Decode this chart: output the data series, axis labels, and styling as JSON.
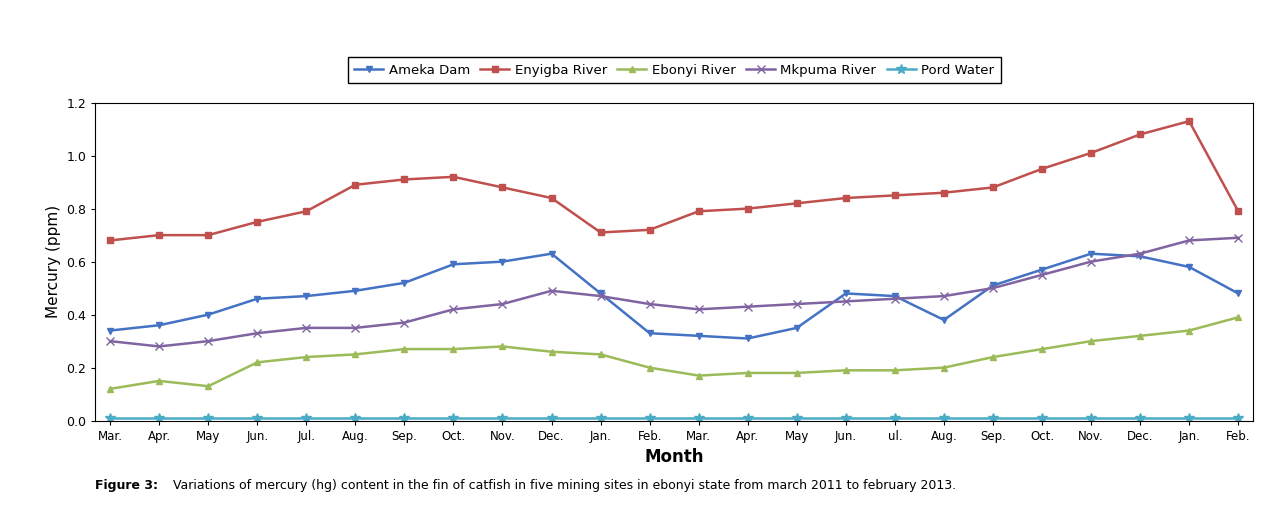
{
  "months": [
    "Mar.",
    "Apr.",
    "May",
    "Jun.",
    "Jul.",
    "Aug.",
    "Sep.",
    "Oct.",
    "Nov.",
    "Dec.",
    "Jan.",
    "Feb.",
    "Mar.",
    "Apr.",
    "May",
    "Jun.",
    "ul.",
    "Aug.",
    "Sep.",
    "Oct.",
    "Nov.",
    "Dec.",
    "Jan.",
    "Feb."
  ],
  "ameka_dam": [
    0.34,
    0.36,
    0.4,
    0.46,
    0.47,
    0.49,
    0.52,
    0.59,
    0.6,
    0.63,
    0.48,
    0.33,
    0.32,
    0.31,
    0.35,
    0.48,
    0.47,
    0.38,
    0.51,
    0.57,
    0.63,
    0.62,
    0.58,
    0.48
  ],
  "enyigba_river": [
    0.68,
    0.7,
    0.7,
    0.75,
    0.79,
    0.89,
    0.91,
    0.92,
    0.88,
    0.84,
    0.71,
    0.72,
    0.79,
    0.8,
    0.82,
    0.84,
    0.85,
    0.86,
    0.88,
    0.95,
    1.01,
    1.08,
    1.13,
    0.79
  ],
  "ebonyi_river": [
    0.12,
    0.15,
    0.13,
    0.22,
    0.24,
    0.25,
    0.27,
    0.27,
    0.28,
    0.26,
    0.25,
    0.2,
    0.17,
    0.18,
    0.18,
    0.19,
    0.19,
    0.2,
    0.24,
    0.27,
    0.3,
    0.32,
    0.34,
    0.39
  ],
  "mkpuma_river": [
    0.3,
    0.28,
    0.3,
    0.33,
    0.35,
    0.35,
    0.37,
    0.42,
    0.44,
    0.49,
    0.47,
    0.44,
    0.42,
    0.43,
    0.44,
    0.45,
    0.46,
    0.47,
    0.5,
    0.55,
    0.6,
    0.63,
    0.68,
    0.69
  ],
  "pond_water": [
    0.01,
    0.01,
    0.01,
    0.01,
    0.01,
    0.01,
    0.01,
    0.01,
    0.01,
    0.01,
    0.01,
    0.01,
    0.01,
    0.01,
    0.01,
    0.01,
    0.01,
    0.01,
    0.01,
    0.01,
    0.01,
    0.01,
    0.01,
    0.01
  ],
  "ylabel": "Mercury (ppm)",
  "xlabel": "Month",
  "ylim": [
    0,
    1.2
  ],
  "yticks": [
    0,
    0.2,
    0.4,
    0.6,
    0.8,
    1.0,
    1.2
  ],
  "legend_labels": [
    "Ameka Dam",
    "Enyigba River",
    "Ebonyi River",
    "Mkpuma River",
    "Pord Water"
  ],
  "colors": {
    "ameka_dam": "#4472C4",
    "enyigba_river": "#C0504D",
    "ebonyi_river": "#9BBB59",
    "mkpuma_river": "#8064A2",
    "pond_water": "#4BACC6"
  },
  "caption_bold": "Figure 3:",
  "caption_text": " Variations of mercury (hg) content in the fin of catfish in five mining sites in ebonyi state from march 2011 to february 2013."
}
